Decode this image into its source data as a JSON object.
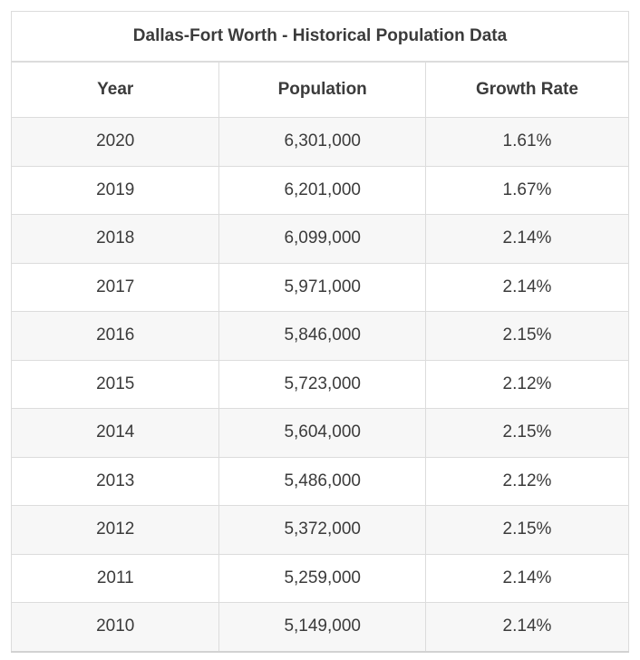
{
  "chart_data": {
    "type": "table",
    "title": "Dallas-Fort Worth - Historical Population Data",
    "columns": [
      "Year",
      "Population",
      "Growth Rate"
    ],
    "rows": [
      [
        "2020",
        "6,301,000",
        "1.61%"
      ],
      [
        "2019",
        "6,201,000",
        "1.67%"
      ],
      [
        "2018",
        "6,099,000",
        "2.14%"
      ],
      [
        "2017",
        "5,971,000",
        "2.14%"
      ],
      [
        "2016",
        "5,846,000",
        "2.15%"
      ],
      [
        "2015",
        "5,723,000",
        "2.12%"
      ],
      [
        "2014",
        "5,604,000",
        "2.15%"
      ],
      [
        "2013",
        "5,486,000",
        "2.12%"
      ],
      [
        "2012",
        "5,372,000",
        "2.15%"
      ],
      [
        "2011",
        "5,259,000",
        "2.14%"
      ],
      [
        "2010",
        "5,149,000",
        "2.14%"
      ]
    ]
  },
  "colors": {
    "text": "#3b3b3b",
    "border": "#dcdcdc",
    "stripe_row_background": "#f7f7f7",
    "plain_row_background": "#ffffff"
  }
}
